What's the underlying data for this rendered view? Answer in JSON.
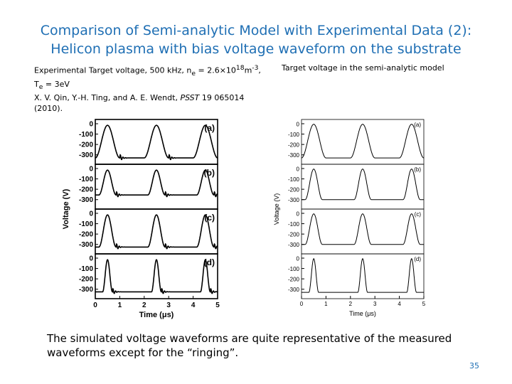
{
  "title": {
    "line1": "Comparison of Semi-analytic Model with Experimental Data (2):",
    "line2": "Helicon plasma with bias voltage waveform on the substrate"
  },
  "caption_left": {
    "line1_prefix": "Experimental Target voltage, 500 kHz, n",
    "line1_sub": "e",
    "line1_mid": " = 2.6×10",
    "line1_sup1": "18",
    "line1_unit": "m",
    "line1_sup2": "-3",
    "line1_end": ",",
    "line2_prefix": "T",
    "line2_sub": "e",
    "line2_rest": " = 3eV",
    "line3": "X. V. Qin, Y.-H. Ting, and A. E. Wendt, ",
    "line3_journal": "PSST",
    "line3_end": " 19 065014",
    "line4": "(2010)."
  },
  "caption_right": "Target voltage in the semi-analytic model",
  "bottom_text": "The simulated voltage waveforms are quite representative of the measured waveforms except for the “ringing”.",
  "page_number": "35",
  "chart_data": [
    {
      "type": "line",
      "source": "experimental",
      "xlabel": "Time (μs)",
      "ylabel": "Voltage (V)",
      "xlim": [
        0,
        5
      ],
      "ylim": [
        -350,
        0
      ],
      "x_ticks": [
        "0",
        "1",
        "2",
        "3",
        "4",
        "5"
      ],
      "y_ticks": [
        "0",
        "-100",
        "-200",
        "-300"
      ],
      "panels": [
        {
          "label": "(a)",
          "low": -330,
          "high": -15,
          "duty": 0.25
        },
        {
          "label": "(b)",
          "low": -255,
          "high": -15,
          "duty": 0.5
        },
        {
          "label": "(c)",
          "low": -325,
          "high": -15,
          "duty": 0.5
        },
        {
          "label": "(d)",
          "low": -325,
          "high": -15,
          "duty": 0.75
        }
      ]
    },
    {
      "type": "line",
      "source": "semi-analytic model",
      "xlabel": "Time (μs)",
      "ylabel": "Voltage (V)",
      "xlim": [
        0,
        5
      ],
      "ylim": [
        -350,
        0
      ],
      "x_ticks": [
        "0",
        "1",
        "2",
        "3",
        "4",
        "5"
      ],
      "y_ticks": [
        "0",
        "-100",
        "-200",
        "-300"
      ],
      "panels": [
        {
          "label": "(a)",
          "low": -330,
          "high": -5,
          "duty": 0.25
        },
        {
          "label": "(b)",
          "low": -300,
          "high": -5,
          "duty": 0.5
        },
        {
          "label": "(c)",
          "low": -300,
          "high": -5,
          "duty": 0.5
        },
        {
          "label": "(d)",
          "low": -330,
          "high": -5,
          "duty": 0.75
        }
      ]
    }
  ]
}
